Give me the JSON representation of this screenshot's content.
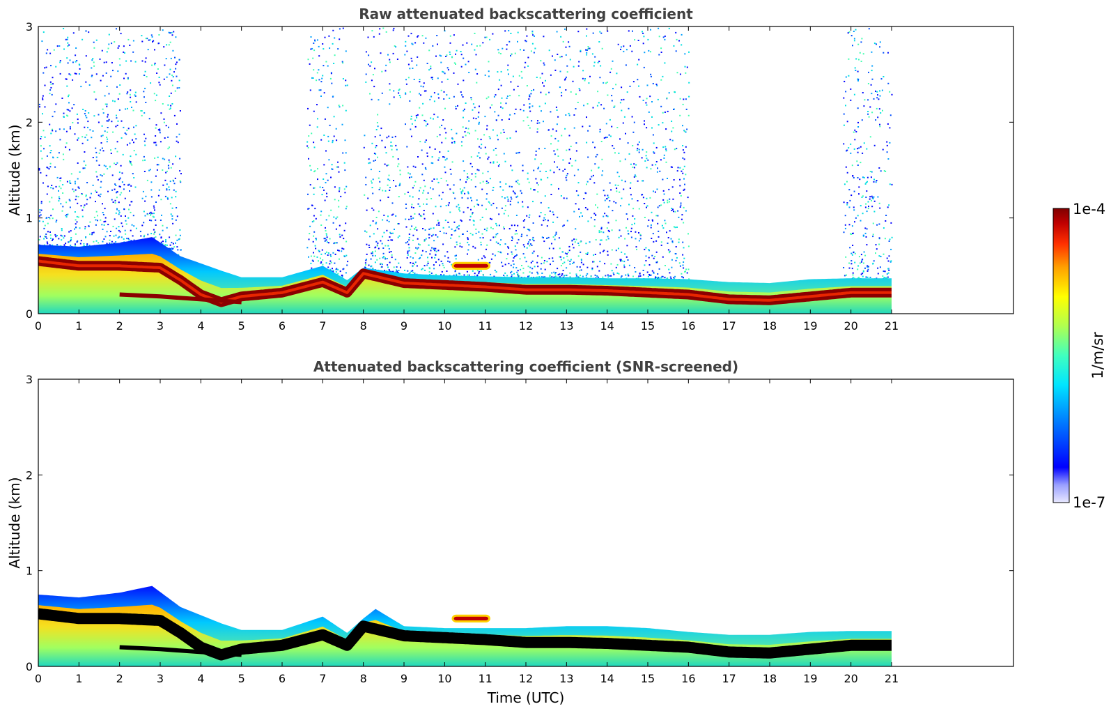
{
  "chart_data": [
    {
      "type": "heatmap",
      "title": "Raw attenuated backscattering coefficient",
      "xlabel": "",
      "ylabel": "Altitude (km)",
      "xlim": [
        0,
        24
      ],
      "ylim": [
        0,
        3
      ],
      "x_ticks": [
        "0",
        "1",
        "2",
        "3",
        "4",
        "5",
        "6",
        "7",
        "8",
        "9",
        "10",
        "11",
        "12",
        "13",
        "14",
        "15",
        "16",
        "17",
        "18",
        "19",
        "20",
        "21"
      ],
      "y_ticks": [
        "0",
        "1",
        "2",
        "3"
      ],
      "data_extent_hours": [
        0,
        21
      ],
      "layer_top_km": [
        [
          0,
          0.72
        ],
        [
          1,
          0.7
        ],
        [
          2,
          0.74
        ],
        [
          2.8,
          0.8
        ],
        [
          3.5,
          0.6
        ],
        [
          4.5,
          0.45
        ],
        [
          5,
          0.38
        ],
        [
          6,
          0.38
        ],
        [
          7,
          0.5
        ],
        [
          7.6,
          0.35
        ],
        [
          8,
          0.48
        ],
        [
          9,
          0.42
        ],
        [
          10,
          0.4
        ],
        [
          11,
          0.39
        ],
        [
          12,
          0.38
        ],
        [
          13,
          0.38
        ],
        [
          14,
          0.37
        ],
        [
          15,
          0.37
        ],
        [
          16,
          0.36
        ],
        [
          17,
          0.33
        ],
        [
          18,
          0.32
        ],
        [
          19,
          0.36
        ],
        [
          20,
          0.37
        ],
        [
          21,
          0.37
        ]
      ],
      "peak_layer_km": [
        [
          0,
          0.55
        ],
        [
          1,
          0.5
        ],
        [
          2,
          0.5
        ],
        [
          3,
          0.48
        ],
        [
          3.5,
          0.35
        ],
        [
          4,
          0.2
        ],
        [
          4.5,
          0.12
        ],
        [
          5,
          0.18
        ],
        [
          6,
          0.22
        ],
        [
          7,
          0.33
        ],
        [
          7.6,
          0.22
        ],
        [
          8,
          0.42
        ],
        [
          9,
          0.32
        ],
        [
          10,
          0.3
        ],
        [
          11,
          0.28
        ],
        [
          12,
          0.25
        ],
        [
          13,
          0.25
        ],
        [
          14,
          0.24
        ],
        [
          15,
          0.22
        ],
        [
          16,
          0.2
        ],
        [
          17,
          0.15
        ],
        [
          18,
          0.14
        ],
        [
          19,
          0.18
        ],
        [
          20,
          0.22
        ],
        [
          21,
          0.22
        ]
      ],
      "secondary_layer_km": [
        [
          2,
          0.2
        ],
        [
          3,
          0.18
        ],
        [
          4,
          0.15
        ],
        [
          5,
          0.12
        ]
      ],
      "elevated_feature": {
        "x_range_hours": [
          10.2,
          11.1
        ],
        "altitude_km": 0.5
      },
      "noise_columns_hours": [
        [
          0,
          2.4
        ],
        [
          2.5,
          3.5
        ],
        [
          6.6,
          7.6
        ],
        [
          8,
          8.9
        ],
        [
          9,
          16
        ],
        [
          19.8,
          21
        ]
      ]
    },
    {
      "type": "heatmap",
      "title": "Attenuated backscattering coefficient (SNR-screened)",
      "xlabel": "Time (UTC)",
      "ylabel": "Altitude (km)",
      "xlim": [
        0,
        24
      ],
      "ylim": [
        0,
        3
      ],
      "x_ticks": [
        "0",
        "1",
        "2",
        "3",
        "4",
        "5",
        "6",
        "7",
        "8",
        "9",
        "10",
        "11",
        "12",
        "13",
        "14",
        "15",
        "16",
        "17",
        "18",
        "19",
        "20",
        "21"
      ],
      "y_ticks": [
        "0",
        "1",
        "2",
        "3"
      ],
      "data_extent_hours": [
        0,
        21
      ],
      "layer_top_km": [
        [
          0,
          0.75
        ],
        [
          1,
          0.72
        ],
        [
          2,
          0.77
        ],
        [
          2.8,
          0.84
        ],
        [
          3.5,
          0.62
        ],
        [
          4.5,
          0.45
        ],
        [
          5,
          0.38
        ],
        [
          6,
          0.38
        ],
        [
          7,
          0.52
        ],
        [
          7.6,
          0.35
        ],
        [
          8,
          0.5
        ],
        [
          8.3,
          0.6
        ],
        [
          9,
          0.42
        ],
        [
          10,
          0.4
        ],
        [
          11,
          0.4
        ],
        [
          12,
          0.4
        ],
        [
          13,
          0.42
        ],
        [
          14,
          0.42
        ],
        [
          15,
          0.4
        ],
        [
          16,
          0.36
        ],
        [
          17,
          0.33
        ],
        [
          18,
          0.33
        ],
        [
          19,
          0.36
        ],
        [
          20,
          0.37
        ],
        [
          21,
          0.37
        ]
      ],
      "peak_layer_km": [
        [
          0,
          0.55
        ],
        [
          1,
          0.5
        ],
        [
          2,
          0.5
        ],
        [
          3,
          0.48
        ],
        [
          3.5,
          0.35
        ],
        [
          4,
          0.2
        ],
        [
          4.5,
          0.12
        ],
        [
          5,
          0.18
        ],
        [
          6,
          0.22
        ],
        [
          7,
          0.33
        ],
        [
          7.6,
          0.22
        ],
        [
          8,
          0.42
        ],
        [
          9,
          0.32
        ],
        [
          10,
          0.3
        ],
        [
          11,
          0.28
        ],
        [
          12,
          0.25
        ],
        [
          13,
          0.25
        ],
        [
          14,
          0.24
        ],
        [
          15,
          0.22
        ],
        [
          16,
          0.2
        ],
        [
          17,
          0.15
        ],
        [
          18,
          0.14
        ],
        [
          19,
          0.18
        ],
        [
          20,
          0.22
        ],
        [
          21,
          0.22
        ]
      ],
      "secondary_layer_km": [
        [
          2,
          0.2
        ],
        [
          3,
          0.18
        ],
        [
          4,
          0.15
        ],
        [
          5,
          0.12
        ]
      ],
      "elevated_feature": {
        "x_range_hours": [
          10.2,
          11.1
        ],
        "altitude_km": 0.5
      }
    }
  ],
  "colorbar": {
    "label": "1/m/sr",
    "max_label": "1e-4",
    "min_label": "1e-7",
    "colors": [
      "#e8e8ff",
      "#7f00ff",
      "#0000ff",
      "#0080ff",
      "#00e5ff",
      "#40ffbf",
      "#9fff60",
      "#ffff00",
      "#ffa500",
      "#ff3000",
      "#c00000",
      "#7f0000"
    ]
  }
}
